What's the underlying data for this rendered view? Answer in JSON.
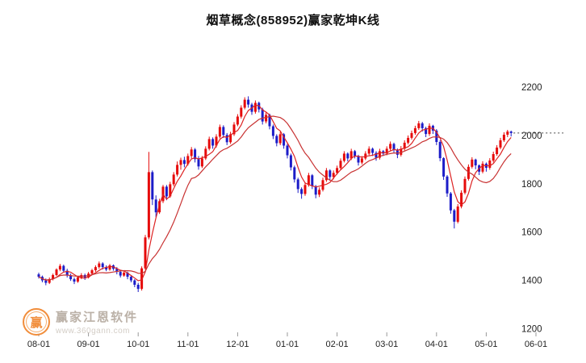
{
  "watermark": {
    "logo_text": "赢",
    "brand": "赢家江恩软件",
    "url": "www.360gann.com"
  },
  "chart_data": {
    "type": "candlestick",
    "title": "烟草概念(858952)赢家乾坤K线",
    "x_ticks": [
      "08-01",
      "09-01",
      "10-01",
      "11-01",
      "12-01",
      "01-01",
      "02-01",
      "03-01",
      "04-01",
      "05-01",
      "06-01"
    ],
    "candles_per_tick": 14,
    "y_ticks": [
      2200,
      2000,
      1800,
      1600,
      1400,
      1200
    ],
    "ylim": [
      1200,
      2200
    ],
    "grid": "off",
    "legend": "none",
    "last_close": 2010,
    "ma_periods": [
      5,
      13
    ],
    "colors": {
      "up": "#e60a0a",
      "down": "#1c1cc8",
      "ma_fast": "#dd2222",
      "ma_slow": "#c83232",
      "last_line": "#444444",
      "axis_text": "#222222"
    },
    "ohlc_format": [
      "open",
      "high",
      "low",
      "close"
    ],
    "candles": [
      [
        1425,
        1432,
        1408,
        1415
      ],
      [
        1415,
        1420,
        1392,
        1400
      ],
      [
        1400,
        1408,
        1380,
        1390
      ],
      [
        1390,
        1412,
        1385,
        1405
      ],
      [
        1405,
        1428,
        1400,
        1422
      ],
      [
        1422,
        1450,
        1418,
        1445
      ],
      [
        1445,
        1468,
        1438,
        1460
      ],
      [
        1460,
        1465,
        1432,
        1440
      ],
      [
        1440,
        1448,
        1412,
        1420
      ],
      [
        1420,
        1428,
        1398,
        1405
      ],
      [
        1405,
        1412,
        1385,
        1395
      ],
      [
        1395,
        1418,
        1390,
        1412
      ],
      [
        1412,
        1430,
        1405,
        1422
      ],
      [
        1422,
        1428,
        1402,
        1412
      ],
      [
        1412,
        1435,
        1408,
        1428
      ],
      [
        1428,
        1448,
        1422,
        1442
      ],
      [
        1442,
        1462,
        1435,
        1455
      ],
      [
        1455,
        1478,
        1448,
        1470
      ],
      [
        1470,
        1475,
        1445,
        1455
      ],
      [
        1455,
        1462,
        1438,
        1445
      ],
      [
        1445,
        1468,
        1440,
        1462
      ],
      [
        1462,
        1466,
        1440,
        1448
      ],
      [
        1448,
        1455,
        1425,
        1435
      ],
      [
        1435,
        1442,
        1412,
        1420
      ],
      [
        1420,
        1438,
        1415,
        1432
      ],
      [
        1432,
        1436,
        1405,
        1415
      ],
      [
        1415,
        1420,
        1392,
        1400
      ],
      [
        1400,
        1405,
        1372,
        1382
      ],
      [
        1382,
        1390,
        1352,
        1365
      ],
      [
        1365,
        1458,
        1358,
        1450
      ],
      [
        1450,
        1588,
        1445,
        1578
      ],
      [
        1578,
        1932,
        1570,
        1848
      ],
      [
        1848,
        1855,
        1712,
        1735
      ],
      [
        1735,
        1752,
        1662,
        1682
      ],
      [
        1682,
        1738,
        1675,
        1728
      ],
      [
        1728,
        1795,
        1720,
        1788
      ],
      [
        1788,
        1795,
        1732,
        1748
      ],
      [
        1748,
        1808,
        1742,
        1798
      ],
      [
        1798,
        1848,
        1790,
        1838
      ],
      [
        1838,
        1892,
        1830,
        1878
      ],
      [
        1878,
        1908,
        1858,
        1898
      ],
      [
        1898,
        1912,
        1868,
        1882
      ],
      [
        1882,
        1925,
        1875,
        1915
      ],
      [
        1915,
        1952,
        1905,
        1942
      ],
      [
        1942,
        1948,
        1888,
        1902
      ],
      [
        1902,
        1915,
        1858,
        1872
      ],
      [
        1872,
        1915,
        1865,
        1905
      ],
      [
        1905,
        1955,
        1898,
        1945
      ],
      [
        1945,
        1995,
        1938,
        1985
      ],
      [
        1985,
        1992,
        1945,
        1958
      ],
      [
        1958,
        2005,
        1950,
        1995
      ],
      [
        1995,
        2045,
        1988,
        2035
      ],
      [
        2035,
        2042,
        1990,
        2002
      ],
      [
        2002,
        2010,
        1960,
        1972
      ],
      [
        1972,
        2015,
        1965,
        2005
      ],
      [
        2005,
        2055,
        1998,
        2045
      ],
      [
        2045,
        2088,
        2038,
        2078
      ],
      [
        2078,
        2125,
        2070,
        2115
      ],
      [
        2115,
        2158,
        2108,
        2148
      ],
      [
        2148,
        2162,
        2115,
        2128
      ],
      [
        2128,
        2135,
        2085,
        2098
      ],
      [
        2098,
        2145,
        2090,
        2135
      ],
      [
        2135,
        2140,
        2095,
        2108
      ],
      [
        2108,
        2115,
        2045,
        2058
      ],
      [
        2058,
        2095,
        2050,
        2085
      ],
      [
        2085,
        2090,
        2025,
        2038
      ],
      [
        2038,
        2045,
        1985,
        1998
      ],
      [
        1998,
        2005,
        1955,
        1968
      ],
      [
        1968,
        2015,
        1960,
        2005
      ],
      [
        2005,
        2010,
        1945,
        1958
      ],
      [
        1958,
        1965,
        1905,
        1918
      ],
      [
        1918,
        1925,
        1855,
        1868
      ],
      [
        1868,
        1875,
        1805,
        1818
      ],
      [
        1818,
        1825,
        1762,
        1778
      ],
      [
        1778,
        1785,
        1738,
        1758
      ],
      [
        1758,
        1805,
        1750,
        1795
      ],
      [
        1795,
        1845,
        1788,
        1835
      ],
      [
        1835,
        1840,
        1778,
        1790
      ],
      [
        1790,
        1795,
        1740,
        1755
      ],
      [
        1755,
        1785,
        1745,
        1775
      ],
      [
        1775,
        1825,
        1768,
        1815
      ],
      [
        1815,
        1865,
        1808,
        1855
      ],
      [
        1855,
        1860,
        1815,
        1828
      ],
      [
        1828,
        1855,
        1818,
        1845
      ],
      [
        1845,
        1875,
        1838,
        1865
      ],
      [
        1865,
        1905,
        1858,
        1895
      ],
      [
        1895,
        1935,
        1888,
        1925
      ],
      [
        1925,
        1930,
        1892,
        1905
      ],
      [
        1905,
        1945,
        1898,
        1935
      ],
      [
        1935,
        1940,
        1905,
        1915
      ],
      [
        1915,
        1920,
        1875,
        1888
      ],
      [
        1888,
        1915,
        1880,
        1905
      ],
      [
        1905,
        1935,
        1898,
        1925
      ],
      [
        1925,
        1955,
        1918,
        1945
      ],
      [
        1945,
        1950,
        1915,
        1928
      ],
      [
        1928,
        1935,
        1895,
        1908
      ],
      [
        1908,
        1945,
        1900,
        1935
      ],
      [
        1935,
        1940,
        1915,
        1925
      ],
      [
        1925,
        1955,
        1918,
        1945
      ],
      [
        1945,
        1975,
        1938,
        1965
      ],
      [
        1965,
        1970,
        1930,
        1940
      ],
      [
        1940,
        1946,
        1906,
        1920
      ],
      [
        1920,
        1956,
        1913,
        1945
      ],
      [
        1945,
        1980,
        1938,
        1970
      ],
      [
        1970,
        2000,
        1963,
        1990
      ],
      [
        1990,
        2020,
        1983,
        2010
      ],
      [
        2010,
        2040,
        2003,
        2030
      ],
      [
        2030,
        2060,
        2023,
        2050
      ],
      [
        2050,
        2056,
        2016,
        2030
      ],
      [
        2030,
        2036,
        1993,
        2006
      ],
      [
        2006,
        2050,
        1998,
        2040
      ],
      [
        2040,
        2044,
        2006,
        2020
      ],
      [
        2020,
        2026,
        1960,
        1973
      ],
      [
        1973,
        1980,
        1893,
        1906
      ],
      [
        1906,
        1910,
        1816,
        1830
      ],
      [
        1830,
        1836,
        1746,
        1760
      ],
      [
        1760,
        1766,
        1676,
        1690
      ],
      [
        1690,
        1696,
        1615,
        1643
      ],
      [
        1643,
        1716,
        1636,
        1706
      ],
      [
        1706,
        1773,
        1698,
        1763
      ],
      [
        1763,
        1830,
        1756,
        1820
      ],
      [
        1820,
        1880,
        1813,
        1870
      ],
      [
        1870,
        1910,
        1863,
        1900
      ],
      [
        1900,
        1904,
        1860,
        1876
      ],
      [
        1876,
        1880,
        1836,
        1850
      ],
      [
        1850,
        1893,
        1843,
        1883
      ],
      [
        1883,
        1888,
        1850,
        1866
      ],
      [
        1866,
        1906,
        1858,
        1896
      ],
      [
        1896,
        1933,
        1888,
        1923
      ],
      [
        1923,
        1960,
        1916,
        1950
      ],
      [
        1950,
        1990,
        1943,
        1980
      ],
      [
        1980,
        2013,
        1973,
        2003
      ],
      [
        2003,
        2023,
        1993,
        2016
      ],
      [
        2016,
        2020,
        1996,
        2010
      ]
    ]
  }
}
